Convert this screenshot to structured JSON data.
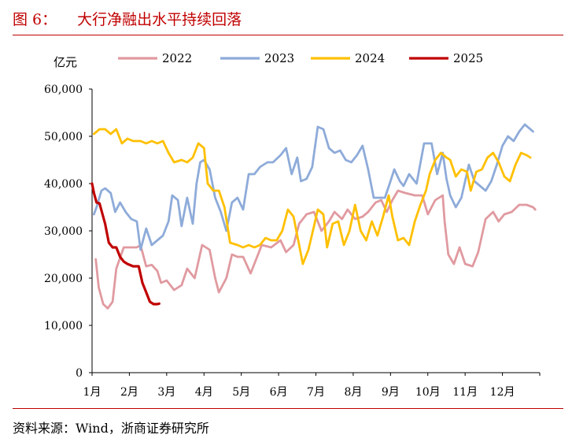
{
  "header": {
    "label": "图 6：",
    "title": "大行净融出水平持续回落"
  },
  "footer": {
    "source": "资料来源：Wind，浙商证券研究所"
  },
  "colors": {
    "accent": "#c00000",
    "y2022": "#e09aa0",
    "y2023": "#8eabd9",
    "y2024": "#ffc000",
    "y2025": "#c00000"
  },
  "chart_data": {
    "type": "line",
    "title": "大行净融出水平持续回落",
    "ylabel": "亿元",
    "xlabel": "",
    "ylim": [
      0,
      60000
    ],
    "yticks": [
      0,
      10000,
      20000,
      30000,
      40000,
      50000,
      60000
    ],
    "ytick_labels": [
      "0",
      "10,000",
      "20,000",
      "30,000",
      "40,000",
      "50,000",
      "60,000"
    ],
    "xlim": [
      0,
      12
    ],
    "x_unit": "month index (0 = start of Jan)",
    "categories": [
      "1月",
      "2月",
      "3月",
      "4月",
      "5月",
      "6月",
      "7月",
      "8月",
      "9月",
      "10月",
      "11月",
      "12月"
    ],
    "legend_position": "top",
    "series": [
      {
        "name": "2022",
        "color": "#e09aa0",
        "points": [
          [
            0.1,
            24000
          ],
          [
            0.18,
            18000
          ],
          [
            0.3,
            14500
          ],
          [
            0.42,
            13600
          ],
          [
            0.55,
            15000
          ],
          [
            0.65,
            22000
          ],
          [
            0.85,
            26500
          ],
          [
            1.2,
            26500
          ],
          [
            1.3,
            27000
          ],
          [
            1.45,
            22500
          ],
          [
            1.6,
            22800
          ],
          [
            1.75,
            21500
          ],
          [
            1.85,
            19000
          ],
          [
            2.0,
            19500
          ],
          [
            2.2,
            17500
          ],
          [
            2.4,
            18500
          ],
          [
            2.55,
            22000
          ],
          [
            2.75,
            20000
          ],
          [
            2.95,
            27000
          ],
          [
            3.15,
            26000
          ],
          [
            3.3,
            20000
          ],
          [
            3.4,
            17000
          ],
          [
            3.6,
            20000
          ],
          [
            3.75,
            25000
          ],
          [
            3.9,
            24500
          ],
          [
            4.05,
            24500
          ],
          [
            4.25,
            21000
          ],
          [
            4.4,
            24000
          ],
          [
            4.55,
            27000
          ],
          [
            4.8,
            26500
          ],
          [
            5.05,
            28000
          ],
          [
            5.2,
            25500
          ],
          [
            5.4,
            27000
          ],
          [
            5.55,
            31500
          ],
          [
            5.75,
            33500
          ],
          [
            5.95,
            34000
          ],
          [
            6.15,
            30000
          ],
          [
            6.35,
            32000
          ],
          [
            6.5,
            34000
          ],
          [
            6.7,
            32500
          ],
          [
            6.85,
            34500
          ],
          [
            7.05,
            32500
          ],
          [
            7.25,
            33000
          ],
          [
            7.4,
            34000
          ],
          [
            7.6,
            36000
          ],
          [
            7.75,
            36500
          ],
          [
            7.9,
            34000
          ],
          [
            8.05,
            36500
          ],
          [
            8.2,
            38500
          ],
          [
            8.4,
            38000
          ],
          [
            8.65,
            37500
          ],
          [
            8.85,
            37500
          ],
          [
            9.0,
            33500
          ],
          [
            9.2,
            36500
          ],
          [
            9.4,
            37500
          ],
          [
            9.45,
            32000
          ],
          [
            9.55,
            25000
          ],
          [
            9.7,
            23000
          ],
          [
            9.85,
            26500
          ],
          [
            10.0,
            23000
          ],
          [
            10.2,
            22500
          ],
          [
            10.35,
            25500
          ],
          [
            10.55,
            32500
          ],
          [
            10.75,
            34000
          ],
          [
            10.9,
            32000
          ],
          [
            11.05,
            33500
          ],
          [
            11.25,
            34000
          ],
          [
            11.45,
            35500
          ],
          [
            11.65,
            35500
          ],
          [
            11.82,
            35000
          ],
          [
            11.88,
            34500
          ]
        ]
      },
      {
        "name": "2023",
        "color": "#8eabd9",
        "points": [
          [
            0.05,
            33500
          ],
          [
            0.12,
            35000
          ],
          [
            0.25,
            38500
          ],
          [
            0.35,
            39000
          ],
          [
            0.5,
            38000
          ],
          [
            0.62,
            34000
          ],
          [
            0.75,
            36000
          ],
          [
            0.9,
            34000
          ],
          [
            1.05,
            32500
          ],
          [
            1.2,
            32000
          ],
          [
            1.3,
            26000
          ],
          [
            1.45,
            30500
          ],
          [
            1.6,
            27000
          ],
          [
            1.75,
            28000
          ],
          [
            1.9,
            29000
          ],
          [
            2.05,
            32000
          ],
          [
            2.15,
            37500
          ],
          [
            2.3,
            36500
          ],
          [
            2.4,
            31000
          ],
          [
            2.55,
            37000
          ],
          [
            2.7,
            31500
          ],
          [
            2.8,
            40000
          ],
          [
            2.9,
            44500
          ],
          [
            3.0,
            45000
          ],
          [
            3.15,
            43000
          ],
          [
            3.3,
            37000
          ],
          [
            3.45,
            34000
          ],
          [
            3.6,
            30000
          ],
          [
            3.75,
            36000
          ],
          [
            3.9,
            37000
          ],
          [
            4.05,
            34500
          ],
          [
            4.2,
            42000
          ],
          [
            4.35,
            42000
          ],
          [
            4.5,
            43500
          ],
          [
            4.7,
            44500
          ],
          [
            4.85,
            44500
          ],
          [
            5.05,
            46000
          ],
          [
            5.2,
            47500
          ],
          [
            5.35,
            42000
          ],
          [
            5.5,
            45500
          ],
          [
            5.6,
            40500
          ],
          [
            5.75,
            41000
          ],
          [
            5.9,
            43500
          ],
          [
            6.05,
            52000
          ],
          [
            6.2,
            51500
          ],
          [
            6.35,
            47500
          ],
          [
            6.5,
            46500
          ],
          [
            6.65,
            47000
          ],
          [
            6.8,
            45000
          ],
          [
            6.95,
            44500
          ],
          [
            7.1,
            46000
          ],
          [
            7.25,
            48000
          ],
          [
            7.4,
            43000
          ],
          [
            7.55,
            37000
          ],
          [
            7.7,
            37000
          ],
          [
            7.85,
            37000
          ],
          [
            8.0,
            40500
          ],
          [
            8.1,
            43000
          ],
          [
            8.25,
            40500
          ],
          [
            8.35,
            39500
          ],
          [
            8.5,
            42000
          ],
          [
            8.7,
            40000
          ],
          [
            8.9,
            48500
          ],
          [
            9.1,
            48500
          ],
          [
            9.25,
            42000
          ],
          [
            9.4,
            46500
          ],
          [
            9.5,
            41000
          ],
          [
            9.6,
            37500
          ],
          [
            9.75,
            35000
          ],
          [
            9.9,
            37000
          ],
          [
            10.1,
            44000
          ],
          [
            10.25,
            40500
          ],
          [
            10.4,
            39500
          ],
          [
            10.55,
            38500
          ],
          [
            10.7,
            40500
          ],
          [
            10.85,
            44000
          ],
          [
            11.0,
            48000
          ],
          [
            11.15,
            50000
          ],
          [
            11.3,
            49000
          ],
          [
            11.45,
            51000
          ],
          [
            11.6,
            52500
          ],
          [
            11.75,
            51500
          ],
          [
            11.82,
            51000
          ]
        ]
      },
      {
        "name": "2024",
        "color": "#ffc000",
        "points": [
          [
            0.05,
            50500
          ],
          [
            0.2,
            51500
          ],
          [
            0.35,
            51500
          ],
          [
            0.5,
            50500
          ],
          [
            0.65,
            51500
          ],
          [
            0.8,
            48500
          ],
          [
            0.95,
            49500
          ],
          [
            1.1,
            49000
          ],
          [
            1.3,
            49000
          ],
          [
            1.45,
            48500
          ],
          [
            1.6,
            49000
          ],
          [
            1.75,
            48500
          ],
          [
            1.9,
            49000
          ],
          [
            2.05,
            46500
          ],
          [
            2.2,
            44500
          ],
          [
            2.4,
            45000
          ],
          [
            2.55,
            44500
          ],
          [
            2.7,
            45500
          ],
          [
            2.85,
            48500
          ],
          [
            3.0,
            47500
          ],
          [
            3.1,
            40000
          ],
          [
            3.25,
            38500
          ],
          [
            3.4,
            38500
          ],
          [
            3.55,
            35000
          ],
          [
            3.7,
            27500
          ],
          [
            3.9,
            27000
          ],
          [
            4.05,
            26500
          ],
          [
            4.2,
            27000
          ],
          [
            4.35,
            26500
          ],
          [
            4.5,
            27000
          ],
          [
            4.65,
            28500
          ],
          [
            4.8,
            28000
          ],
          [
            4.95,
            28000
          ],
          [
            5.1,
            30000
          ],
          [
            5.25,
            34500
          ],
          [
            5.4,
            33000
          ],
          [
            5.55,
            27000
          ],
          [
            5.65,
            23000
          ],
          [
            5.8,
            26000
          ],
          [
            5.95,
            31000
          ],
          [
            6.05,
            34500
          ],
          [
            6.2,
            33500
          ],
          [
            6.3,
            26500
          ],
          [
            6.45,
            31500
          ],
          [
            6.6,
            32000
          ],
          [
            6.75,
            27000
          ],
          [
            6.9,
            30000
          ],
          [
            7.05,
            35500
          ],
          [
            7.2,
            30000
          ],
          [
            7.35,
            28000
          ],
          [
            7.5,
            32000
          ],
          [
            7.65,
            29000
          ],
          [
            7.8,
            33000
          ],
          [
            7.95,
            37500
          ],
          [
            8.05,
            33000
          ],
          [
            8.2,
            28000
          ],
          [
            8.35,
            28500
          ],
          [
            8.5,
            27000
          ],
          [
            8.65,
            32000
          ],
          [
            8.8,
            35500
          ],
          [
            8.95,
            38500
          ],
          [
            9.05,
            42000
          ],
          [
            9.2,
            45000
          ],
          [
            9.35,
            46500
          ],
          [
            9.5,
            45500
          ],
          [
            9.6,
            45000
          ],
          [
            9.75,
            41500
          ],
          [
            9.9,
            43000
          ],
          [
            10.05,
            42500
          ],
          [
            10.15,
            38500
          ],
          [
            10.3,
            42500
          ],
          [
            10.45,
            43000
          ],
          [
            10.6,
            45500
          ],
          [
            10.75,
            46500
          ],
          [
            10.9,
            44500
          ],
          [
            11.05,
            41500
          ],
          [
            11.2,
            40500
          ],
          [
            11.35,
            44000
          ],
          [
            11.5,
            46500
          ],
          [
            11.65,
            46000
          ],
          [
            11.75,
            45500
          ]
        ]
      },
      {
        "name": "2025",
        "color": "#c00000",
        "points": [
          [
            0.0,
            40000
          ],
          [
            0.05,
            38000
          ],
          [
            0.12,
            36000
          ],
          [
            0.2,
            35800
          ],
          [
            0.28,
            33500
          ],
          [
            0.35,
            31500
          ],
          [
            0.45,
            27500
          ],
          [
            0.55,
            26500
          ],
          [
            0.65,
            26500
          ],
          [
            0.75,
            24500
          ],
          [
            0.85,
            23500
          ],
          [
            0.95,
            23000
          ],
          [
            1.1,
            22500
          ],
          [
            1.25,
            22500
          ],
          [
            1.35,
            19000
          ],
          [
            1.45,
            17000
          ],
          [
            1.55,
            15000
          ],
          [
            1.65,
            14500
          ],
          [
            1.75,
            14500
          ],
          [
            1.8,
            14600
          ]
        ]
      }
    ]
  }
}
